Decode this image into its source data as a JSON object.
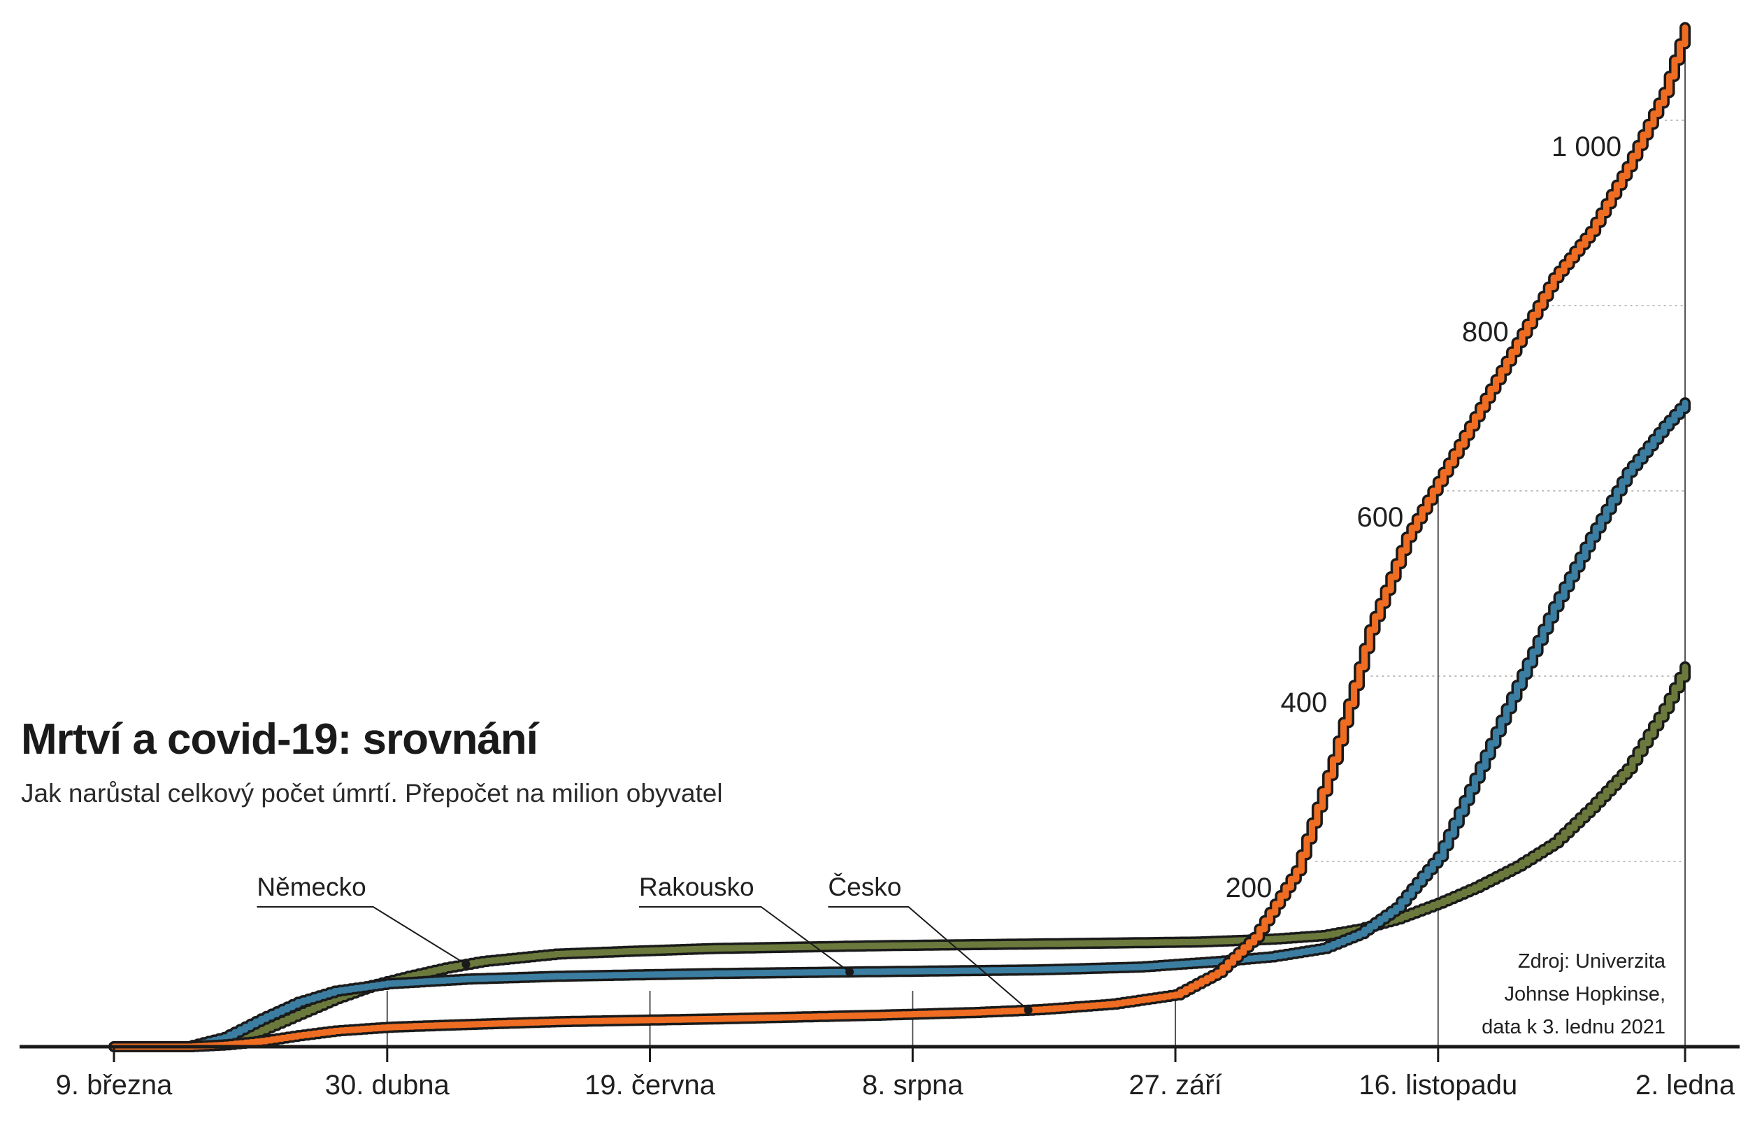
{
  "title": "Mrtví a covid-19: srovnání",
  "subtitle": "Jak narůstal celkový počet úmrtí. Přepočet na milion obyvatel",
  "source_lines": [
    "Zdroj: Univerzita",
    "Johnse Hopkinse,",
    "data k 3. lednu 2021"
  ],
  "chart_data": {
    "type": "line",
    "title": "Mrtví a covid-19: srovnání",
    "subtitle": "Jak narůstal celkový počet úmrtí. Přepočet na milion obyvatel",
    "xlabel": "",
    "ylabel": "",
    "ylim": [
      0,
      1100
    ],
    "y_ticks": [
      200,
      400,
      600,
      800,
      1000
    ],
    "y_tick_labels": [
      "200",
      "400",
      "600",
      "800",
      "1 000"
    ],
    "x_ticks": [
      "2020-03-09",
      "2020-04-30",
      "2020-06-19",
      "2020-08-08",
      "2020-09-27",
      "2020-11-16",
      "2021-01-02"
    ],
    "x_tick_labels": [
      "9. března",
      "30. dubna",
      "19. června",
      "8. srpna",
      "27. září",
      "16. listopadu",
      "2. ledna"
    ],
    "grid": false,
    "series": [
      {
        "name": "Německo",
        "color": "#6b7a3c",
        "points": [
          [
            "2020-03-09",
            0
          ],
          [
            "2020-03-23",
            0
          ],
          [
            "2020-03-30",
            4
          ],
          [
            "2020-04-06",
            18
          ],
          [
            "2020-04-13",
            35
          ],
          [
            "2020-04-20",
            52
          ],
          [
            "2020-04-27",
            66
          ],
          [
            "2020-05-04",
            76
          ],
          [
            "2020-05-11",
            85
          ],
          [
            "2020-05-18",
            92
          ],
          [
            "2020-05-25",
            96
          ],
          [
            "2020-06-01",
            100
          ],
          [
            "2020-06-15",
            103
          ],
          [
            "2020-07-01",
            106
          ],
          [
            "2020-08-01",
            109
          ],
          [
            "2020-09-01",
            111
          ],
          [
            "2020-10-01",
            113
          ],
          [
            "2020-10-15",
            116
          ],
          [
            "2020-10-25",
            120
          ],
          [
            "2020-11-01",
            127
          ],
          [
            "2020-11-08",
            138
          ],
          [
            "2020-11-16",
            155
          ],
          [
            "2020-11-23",
            172
          ],
          [
            "2020-12-01",
            195
          ],
          [
            "2020-12-08",
            220
          ],
          [
            "2020-12-15",
            258
          ],
          [
            "2020-12-22",
            300
          ],
          [
            "2020-12-29",
            365
          ],
          [
            "2021-01-02",
            410
          ]
        ]
      },
      {
        "name": "Rakousko",
        "color": "#3b7ea1",
        "points": [
          [
            "2020-03-09",
            0
          ],
          [
            "2020-03-23",
            0
          ],
          [
            "2020-03-30",
            10
          ],
          [
            "2020-04-06",
            30
          ],
          [
            "2020-04-13",
            48
          ],
          [
            "2020-04-20",
            60
          ],
          [
            "2020-04-30",
            68
          ],
          [
            "2020-05-15",
            73
          ],
          [
            "2020-06-01",
            76
          ],
          [
            "2020-07-01",
            79
          ],
          [
            "2020-08-01",
            81
          ],
          [
            "2020-09-01",
            83
          ],
          [
            "2020-09-20",
            86
          ],
          [
            "2020-10-05",
            92
          ],
          [
            "2020-10-15",
            97
          ],
          [
            "2020-10-25",
            106
          ],
          [
            "2020-11-01",
            122
          ],
          [
            "2020-11-08",
            150
          ],
          [
            "2020-11-16",
            205
          ],
          [
            "2020-11-23",
            290
          ],
          [
            "2020-12-01",
            390
          ],
          [
            "2020-12-08",
            475
          ],
          [
            "2020-12-15",
            550
          ],
          [
            "2020-12-22",
            620
          ],
          [
            "2020-12-29",
            670
          ],
          [
            "2021-01-02",
            695
          ]
        ]
      },
      {
        "name": "Česko",
        "color": "#ef6d22",
        "points": [
          [
            "2020-03-09",
            0
          ],
          [
            "2020-03-23",
            0
          ],
          [
            "2020-03-30",
            2
          ],
          [
            "2020-04-06",
            6
          ],
          [
            "2020-04-13",
            12
          ],
          [
            "2020-04-20",
            17
          ],
          [
            "2020-04-30",
            21
          ],
          [
            "2020-05-15",
            24
          ],
          [
            "2020-06-01",
            27
          ],
          [
            "2020-07-01",
            30
          ],
          [
            "2020-08-01",
            34
          ],
          [
            "2020-08-20",
            37
          ],
          [
            "2020-09-01",
            40
          ],
          [
            "2020-09-15",
            46
          ],
          [
            "2020-09-27",
            56
          ],
          [
            "2020-10-05",
            80
          ],
          [
            "2020-10-12",
            118
          ],
          [
            "2020-10-20",
            190
          ],
          [
            "2020-10-27",
            310
          ],
          [
            "2020-11-03",
            450
          ],
          [
            "2020-11-10",
            550
          ],
          [
            "2020-11-16",
            610
          ],
          [
            "2020-11-23",
            680
          ],
          [
            "2020-12-01",
            760
          ],
          [
            "2020-12-08",
            830
          ],
          [
            "2020-12-15",
            880
          ],
          [
            "2020-12-22",
            950
          ],
          [
            "2020-12-29",
            1030
          ],
          [
            "2021-01-02",
            1100
          ]
        ]
      }
    ],
    "callouts": [
      {
        "label": "Německo",
        "series": "Německo",
        "at": "2020-05-15"
      },
      {
        "label": "Rakousko",
        "series": "Rakousko",
        "at": "2020-07-27"
      },
      {
        "label": "Česko",
        "series": "Česko",
        "at": "2020-08-30"
      }
    ]
  }
}
